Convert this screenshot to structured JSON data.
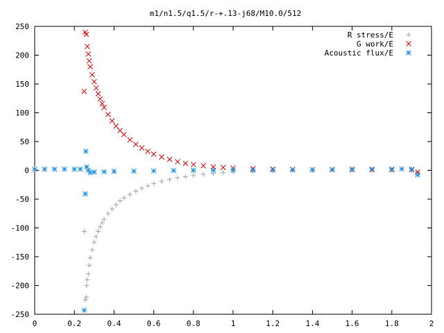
{
  "chart_data": {
    "type": "scatter",
    "title": "m1/n1.5/q1.5/r-+.13-j68/M10.0/512",
    "xlabel": "",
    "ylabel": "",
    "xlim": [
      0,
      2
    ],
    "ylim": [
      -250,
      250
    ],
    "grid": false,
    "legend_position": "top-right",
    "x_ticks": [
      0,
      0.2,
      0.4,
      0.6,
      0.8,
      1,
      1.2,
      1.4,
      1.6,
      1.8,
      2
    ],
    "x_tick_labels": [
      "0",
      "0.2",
      "0.4",
      "0.6",
      "0.8",
      "1",
      "1.2",
      "1.4",
      "1.6",
      "1.8",
      "2"
    ],
    "y_ticks": [
      -250,
      -200,
      -150,
      -100,
      -50,
      0,
      50,
      100,
      150,
      200,
      250
    ],
    "y_tick_labels": [
      "-250",
      "-200",
      "-150",
      "-100",
      "-50",
      "0",
      "50",
      "100",
      "150",
      "200",
      "250"
    ],
    "series": [
      {
        "name": "R stress/E",
        "marker": "plus",
        "color": "#a0a0a0",
        "points": [
          [
            0.25,
            -106
          ],
          [
            0.255,
            -225
          ],
          [
            0.26,
            -220
          ],
          [
            0.262,
            -200
          ],
          [
            0.265,
            -190
          ],
          [
            0.27,
            -180
          ],
          [
            0.275,
            -165
          ],
          [
            0.28,
            -152
          ],
          [
            0.29,
            -138
          ],
          [
            0.3,
            -125
          ],
          [
            0.31,
            -115
          ],
          [
            0.32,
            -106
          ],
          [
            0.33,
            -98
          ],
          [
            0.34,
            -91
          ],
          [
            0.35,
            -85
          ],
          [
            0.37,
            -75
          ],
          [
            0.39,
            -67
          ],
          [
            0.41,
            -60
          ],
          [
            0.43,
            -53
          ],
          [
            0.45,
            -48
          ],
          [
            0.48,
            -42
          ],
          [
            0.51,
            -36
          ],
          [
            0.54,
            -31
          ],
          [
            0.57,
            -27
          ],
          [
            0.6,
            -23
          ],
          [
            0.64,
            -19
          ],
          [
            0.68,
            -16
          ],
          [
            0.72,
            -13
          ],
          [
            0.76,
            -11
          ],
          [
            0.8,
            -9
          ],
          [
            0.85,
            -7
          ],
          [
            0.9,
            -5.5
          ],
          [
            0.95,
            -4
          ],
          [
            1.0,
            -3
          ],
          [
            1.1,
            -2
          ],
          [
            1.2,
            -1.5
          ],
          [
            1.3,
            -1
          ],
          [
            1.4,
            -0.8
          ],
          [
            1.5,
            -0.6
          ],
          [
            1.6,
            -0.5
          ],
          [
            1.7,
            -0.4
          ],
          [
            1.8,
            -0.5
          ],
          [
            1.9,
            -1
          ],
          [
            1.93,
            -3
          ]
        ]
      },
      {
        "name": "G work/E",
        "marker": "cross",
        "color": "#e00000",
        "points": [
          [
            0.25,
            137
          ],
          [
            0.255,
            240
          ],
          [
            0.26,
            236
          ],
          [
            0.265,
            215
          ],
          [
            0.27,
            202
          ],
          [
            0.275,
            190
          ],
          [
            0.28,
            180
          ],
          [
            0.29,
            166
          ],
          [
            0.3,
            154
          ],
          [
            0.31,
            143
          ],
          [
            0.32,
            133
          ],
          [
            0.33,
            124
          ],
          [
            0.34,
            116
          ],
          [
            0.35,
            109
          ],
          [
            0.37,
            97
          ],
          [
            0.39,
            86
          ],
          [
            0.41,
            77
          ],
          [
            0.43,
            69
          ],
          [
            0.45,
            62
          ],
          [
            0.48,
            53
          ],
          [
            0.51,
            45
          ],
          [
            0.54,
            39
          ],
          [
            0.57,
            33
          ],
          [
            0.6,
            28
          ],
          [
            0.64,
            23
          ],
          [
            0.68,
            19
          ],
          [
            0.72,
            15
          ],
          [
            0.76,
            12
          ],
          [
            0.8,
            10
          ],
          [
            0.85,
            8
          ],
          [
            0.9,
            6
          ],
          [
            0.95,
            5
          ],
          [
            1.0,
            4
          ],
          [
            1.1,
            3
          ],
          [
            1.2,
            2
          ],
          [
            1.3,
            1.5
          ],
          [
            1.4,
            1
          ],
          [
            1.5,
            1
          ],
          [
            1.6,
            1
          ],
          [
            1.7,
            1
          ],
          [
            1.8,
            1
          ],
          [
            1.9,
            1
          ],
          [
            1.93,
            -3
          ]
        ]
      },
      {
        "name": "Acoustic flux/E",
        "marker": "star",
        "color": "#1e90e0",
        "points": [
          [
            0.0,
            2
          ],
          [
            0.05,
            2
          ],
          [
            0.1,
            2
          ],
          [
            0.15,
            2
          ],
          [
            0.2,
            2
          ],
          [
            0.23,
            2
          ],
          [
            0.25,
            -243
          ],
          [
            0.255,
            -41
          ],
          [
            0.258,
            33
          ],
          [
            0.262,
            6
          ],
          [
            0.27,
            0
          ],
          [
            0.28,
            -4
          ],
          [
            0.3,
            -3
          ],
          [
            0.35,
            -2.5
          ],
          [
            0.4,
            -2
          ],
          [
            0.5,
            -1.5
          ],
          [
            0.6,
            -1
          ],
          [
            0.7,
            -0.5
          ],
          [
            0.8,
            0
          ],
          [
            0.9,
            0
          ],
          [
            1.0,
            0.5
          ],
          [
            1.1,
            0.5
          ],
          [
            1.2,
            1
          ],
          [
            1.3,
            1
          ],
          [
            1.4,
            1
          ],
          [
            1.5,
            1.5
          ],
          [
            1.6,
            2
          ],
          [
            1.7,
            2
          ],
          [
            1.8,
            2
          ],
          [
            1.85,
            2.5
          ],
          [
            1.9,
            2
          ],
          [
            1.93,
            -8
          ]
        ]
      }
    ]
  }
}
